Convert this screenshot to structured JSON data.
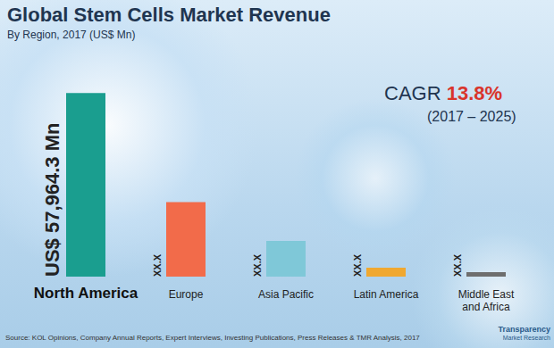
{
  "chart_data": {
    "type": "bar",
    "title": "Global Stem Cells Market Revenue",
    "subtitle": "By Region, 2017 (US$ Mn)",
    "categories": [
      "North America",
      "Europe",
      "Asia Pacific",
      "Latin America",
      "Middle East and Africa"
    ],
    "values": [
      57964.3,
      23500,
      11300,
      2800,
      1400
    ],
    "value_labels": [
      "US$ 57,964.3 Mn",
      "XX.X",
      "XX.X",
      "XX.X",
      "XX.X"
    ],
    "colors": [
      "#1a9e8f",
      "#f26b4a",
      "#7fc8d8",
      "#f0a830",
      "#6e6e6e"
    ],
    "ylim": [
      0,
      62000
    ],
    "data_labels": true,
    "tick_labels": "x",
    "grid": false,
    "cagr": {
      "label": "CAGR",
      "value": "13.8%",
      "period": "(2017 – 2025)"
    },
    "source": "Source: KOL Opinions, Company Annual Reports, Expert Interviews, Investing Publications, Press Releases & TMR Analysis, 2017",
    "logo": [
      "Transparency",
      "Market Research"
    ]
  }
}
